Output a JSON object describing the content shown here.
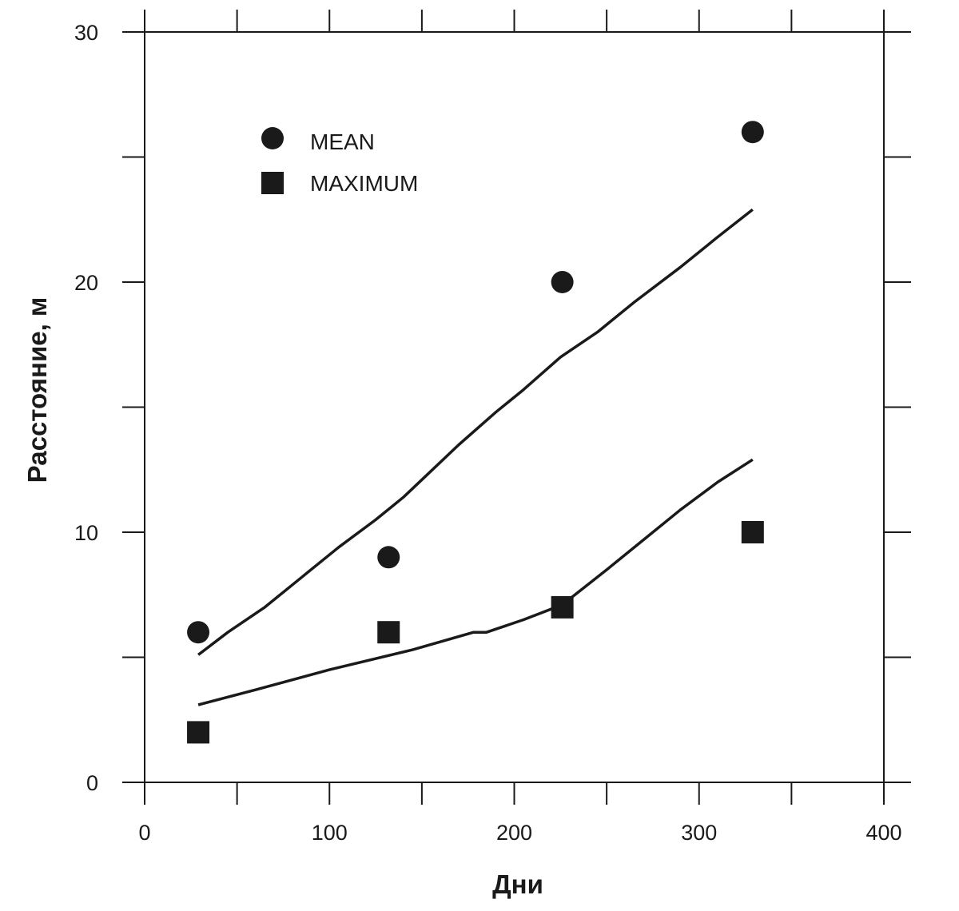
{
  "chart_data": {
    "type": "scatter",
    "title": "",
    "xlabel": "Дни",
    "ylabel": "Расстояние, м",
    "xlim": [
      0,
      400
    ],
    "ylim": [
      0,
      30
    ],
    "x_ticks": [
      0,
      100,
      200,
      300,
      400
    ],
    "y_ticks": [
      0,
      10,
      20,
      30
    ],
    "grid": false,
    "legend_position": "upper-left",
    "series": [
      {
        "name": "MEAN",
        "kind": "points",
        "marker": "circle",
        "x": [
          29,
          132,
          226,
          329
        ],
        "y": [
          6,
          9,
          20,
          26
        ]
      },
      {
        "name": "MAXIMUM",
        "kind": "points",
        "marker": "square",
        "x": [
          29,
          132,
          226,
          329
        ],
        "y": [
          2,
          6,
          7,
          10
        ]
      },
      {
        "kind": "line",
        "x": [
          29,
          45,
          65,
          85,
          105,
          125,
          140,
          150,
          170,
          190,
          205,
          225,
          245,
          265,
          290,
          310,
          329
        ],
        "y": [
          5.1,
          6.0,
          7.0,
          8.2,
          9.4,
          10.5,
          11.4,
          12.1,
          13.5,
          14.8,
          15.7,
          17.0,
          18.0,
          19.2,
          20.6,
          21.8,
          22.9
        ]
      },
      {
        "kind": "line",
        "x": [
          29,
          60,
          100,
          145,
          178,
          185,
          205,
          226,
          250,
          270,
          290,
          310,
          329
        ],
        "y": [
          3.1,
          3.7,
          4.5,
          5.3,
          6.0,
          6.0,
          6.5,
          7.1,
          8.5,
          9.7,
          10.9,
          12.0,
          12.9
        ]
      }
    ],
    "colors": {
      "ink": "#1a1a1a",
      "background": "#ffffff"
    }
  }
}
